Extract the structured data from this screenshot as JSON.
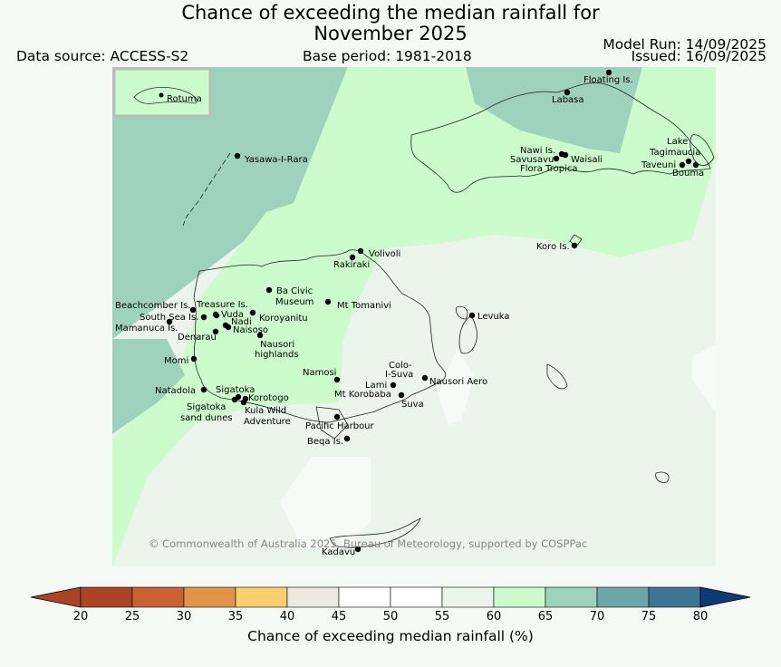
{
  "header": {
    "title_line1": "Chance of exceeding the median rainfall for",
    "title_line2": "November 2025",
    "data_source": "Data source: ACCESS-S2",
    "base_period": "Base period: 1981-2018",
    "model_run": "Model Run: 14/09/2025",
    "issued": "Issued: 16/09/2025"
  },
  "map": {
    "inset_label": "Rotuma",
    "copyright": "© Commonwealth of Australia 2025, Bureau of Meteorology, supported by COSPPac",
    "places": [
      "Floating Is.",
      "Labasa",
      "Yasawa-I-Rara",
      "Nawi Is.",
      "Savusavu",
      "Waisali",
      "Flora Tropica",
      "Lake",
      "Tagimaucia",
      "Taveuni",
      "Bouma",
      "Koro Is.",
      "Volivoli",
      "Rakiraki",
      "Ba Civic",
      "Museum",
      "Mt Tomanivi",
      "Beachcomber Is.",
      "Treasure Is.",
      "South Sea Is.",
      "Vuda",
      "Koroyanitu",
      "Nadi",
      "Mamanuca Is.",
      "Naisoso",
      "Denarau",
      "Nausori",
      "highlands",
      "Levuka",
      "Momi",
      "Namosi",
      "Colo-",
      "I-Suva",
      "Nausori Aero",
      "Natadola",
      "Sigatoka",
      "Lami",
      "Mt Korobaba",
      "Korotogo",
      "Suva",
      "Sigatoka",
      "sand dunes",
      "Kula Wild",
      "Adventure",
      "Pacific Harbour",
      "Beqa Is.",
      "Kadavu"
    ]
  },
  "colorbar": {
    "label": "Chance of exceeding median rainfall (%)",
    "ticks": [
      "20",
      "25",
      "30",
      "35",
      "40",
      "45",
      "50",
      "55",
      "60",
      "65",
      "70",
      "75",
      "80"
    ],
    "colors": [
      "#ab4426",
      "#c96232",
      "#e0954a",
      "#fbcf6c",
      "#ece8e2",
      "#ffffff",
      "#ffffff",
      "#ecf5ec",
      "#ccfccc",
      "#9ed2bd",
      "#6aa6a7",
      "#3e7595",
      "#0c3a73"
    ]
  }
}
